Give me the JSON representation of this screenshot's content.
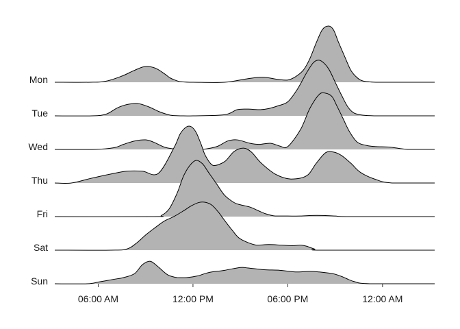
{
  "chart_data": {
    "type": "area",
    "subtype": "ridgeline",
    "title": "",
    "xlabel": "",
    "ylabel": "",
    "x_unit": "hour_of_day",
    "xlim": [
      3.25,
      27.3
    ],
    "x_ticks": [
      {
        "value": 6,
        "label": "06:00 AM"
      },
      {
        "value": 12,
        "label": "12:00 PM"
      },
      {
        "value": 18,
        "label": "06:00 PM"
      },
      {
        "value": 24,
        "label": "12:00 AM"
      }
    ],
    "fill_color": "#b3b3b3",
    "line_color": "#000000",
    "grid": false,
    "legend": "none",
    "series": [
      {
        "name": "Mon",
        "x": [
          3.2,
          5.5,
          6.5,
          7.5,
          8.2,
          8.8,
          9.2,
          9.7,
          10.2,
          10.6,
          11.2,
          12,
          14,
          15.4,
          16.4,
          17.4,
          18,
          18.5,
          19,
          19.4,
          19.8,
          20.2,
          20.6,
          20.9,
          21.2,
          21.6,
          22,
          22.4,
          22.8,
          23.6,
          24.5,
          27.3
        ],
        "y": [
          0,
          0,
          0.02,
          0.11,
          0.2,
          0.27,
          0.28,
          0.24,
          0.15,
          0.07,
          0.01,
          0,
          0,
          0.06,
          0.09,
          0.05,
          0.04,
          0.1,
          0.22,
          0.42,
          0.7,
          0.94,
          1,
          0.93,
          0.72,
          0.46,
          0.21,
          0.08,
          0.02,
          0,
          0,
          0
        ]
      },
      {
        "name": "Tue",
        "x": [
          3.2,
          5.6,
          6.5,
          7.2,
          7.8,
          8.5,
          9.2,
          9.9,
          10.6,
          11.2,
          12,
          14,
          14.8,
          15.5,
          16.2,
          16.8,
          17.4,
          18,
          18.6,
          19.2,
          19.6,
          19.9,
          20.2,
          20.6,
          21,
          21.4,
          21.8,
          22.2,
          22.8,
          23.6,
          24.5,
          27.3
        ],
        "y": [
          0,
          0,
          0.03,
          0.14,
          0.2,
          0.22,
          0.16,
          0.07,
          0.01,
          0,
          0,
          0.02,
          0.11,
          0.12,
          0.11,
          0.13,
          0.18,
          0.25,
          0.47,
          0.77,
          0.94,
          0.99,
          0.96,
          0.83,
          0.6,
          0.37,
          0.16,
          0.05,
          0.01,
          0,
          0,
          0
        ]
      },
      {
        "name": "Wed",
        "x": [
          3.2,
          5.8,
          7,
          7.6,
          8.3,
          9,
          9.5,
          10.2,
          10.8,
          11.4,
          12,
          12.6,
          13.5,
          14.2,
          14.8,
          15.6,
          16.2,
          16.9,
          17.5,
          18,
          18.8,
          19.4,
          20,
          20.4,
          20.8,
          21.1,
          21.5,
          21.9,
          22.4,
          23,
          23.6,
          24.5,
          25.6,
          27.3
        ],
        "y": [
          0,
          0,
          0.03,
          0.09,
          0.15,
          0.17,
          0.13,
          0.04,
          0.01,
          0,
          0,
          0,
          0.05,
          0.15,
          0.17,
          0.11,
          0.09,
          0.11,
          0.06,
          0.05,
          0.35,
          0.73,
          0.98,
          1,
          0.94,
          0.78,
          0.55,
          0.32,
          0.13,
          0.07,
          0.05,
          0.04,
          0,
          0
        ]
      },
      {
        "name": "Thu",
        "x": [
          3.2,
          4.3,
          5.5,
          6.8,
          7.8,
          8.8,
          9.8,
          10.8,
          11.2,
          11.6,
          11.9,
          12.2,
          12.5,
          12.8,
          13.3,
          14,
          14.6,
          15.2,
          15.7,
          16.3,
          17.2,
          18.2,
          19.2,
          19.8,
          20.4,
          20.9,
          21.4,
          22,
          22.6,
          23.5,
          24.6,
          27.3
        ],
        "y": [
          0,
          0,
          0.08,
          0.16,
          0.21,
          0.21,
          0.17,
          0.63,
          0.88,
          1,
          1,
          0.9,
          0.7,
          0.48,
          0.31,
          0.38,
          0.56,
          0.62,
          0.55,
          0.36,
          0.16,
          0.07,
          0.13,
          0.35,
          0.54,
          0.55,
          0.49,
          0.35,
          0.19,
          0.07,
          0,
          0
        ]
      },
      {
        "name": "Fri",
        "x": [
          3.2,
          9.5,
          10,
          10.5,
          11,
          11.4,
          11.8,
          12.2,
          12.6,
          13,
          13.5,
          14,
          14.6,
          15,
          15.6,
          16.1,
          16.6,
          17.2,
          18,
          18.8,
          19.5,
          20.2,
          21,
          22,
          27.3
        ],
        "y": [
          0,
          0,
          0.02,
          0.14,
          0.42,
          0.72,
          0.91,
          1,
          0.94,
          0.78,
          0.58,
          0.38,
          0.25,
          0.21,
          0.17,
          0.11,
          0.05,
          0.01,
          0.01,
          0.01,
          0.02,
          0.02,
          0.01,
          0,
          0
        ]
      },
      {
        "name": "Sat",
        "x": [
          3.2,
          6.8,
          7.8,
          8.4,
          9,
          9.6,
          10.2,
          10.8,
          11.4,
          11.9,
          12.4,
          12.8,
          13.2,
          13.6,
          14,
          14.5,
          15,
          16,
          16.8,
          17.6,
          18.3,
          18.8,
          19.2,
          19.7,
          20.2,
          27.3
        ],
        "y": [
          0,
          0,
          0.02,
          0.12,
          0.27,
          0.4,
          0.52,
          0.6,
          0.7,
          0.79,
          0.85,
          0.85,
          0.8,
          0.68,
          0.53,
          0.35,
          0.2,
          0.09,
          0.1,
          0.09,
          0.08,
          0.09,
          0.07,
          0.02,
          0,
          0
        ]
      },
      {
        "name": "Sun",
        "x": [
          3.2,
          5.3,
          6,
          7,
          7.6,
          8.3,
          8.8,
          9.3,
          9.8,
          10.4,
          11,
          11.6,
          12.3,
          13,
          14,
          15,
          15.5,
          16.5,
          17.5,
          18.5,
          19.4,
          20,
          20.6,
          21,
          21.5,
          22.2,
          23.2,
          27.3
        ],
        "y": [
          0,
          0,
          0.03,
          0.08,
          0.11,
          0.18,
          0.34,
          0.4,
          0.3,
          0.16,
          0.11,
          0.11,
          0.14,
          0.2,
          0.24,
          0.29,
          0.28,
          0.25,
          0.24,
          0.21,
          0.22,
          0.21,
          0.19,
          0.17,
          0.12,
          0.04,
          0,
          0
        ]
      }
    ]
  }
}
